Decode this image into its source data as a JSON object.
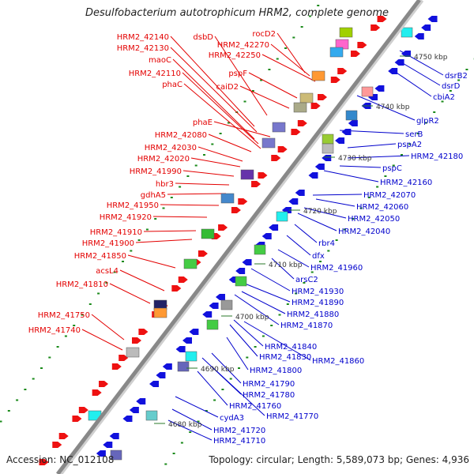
{
  "title": "Desulfobacterium autotrophicum HRM2, complete genome",
  "footer": {
    "accession": "Accession: NC_012108",
    "summary": "Topology: circular; Length: 5,589,073 bp; Genes: 4,936"
  },
  "colors": {
    "forward_label": "#e30000",
    "reverse_label": "#0000cc",
    "backbone": "#888888",
    "tick": "#1a8a1a"
  },
  "scale_ticks": [
    "4680 kbp",
    "4690 kbp",
    "4700 kbp",
    "4710 kbp",
    "4720 kbp",
    "4730 kbp",
    "4740 kbp",
    "4750 kbp"
  ],
  "forward_genes": [
    "HRM2_42140",
    "HRM2_42130",
    "dsbD",
    "rocD2",
    "HRM2_42270",
    "HRM2_42250",
    "maoC",
    "HRM2_42110",
    "pspF",
    "caiD2",
    "phaC",
    "phaE",
    "HRM2_42080",
    "HRM2_42030",
    "HRM2_42020",
    "HRM2_41990",
    "hbr3",
    "gdhA5",
    "HRM2_41950",
    "HRM2_41920",
    "HRM2_41910",
    "HRM2_41900",
    "HRM2_41850",
    "acsL4",
    "HRM2_41810",
    "HRM2_41750",
    "HRM2_41740"
  ],
  "reverse_genes": [
    "dsrB2",
    "dsrD",
    "cbiA2",
    "glpR2",
    "serB",
    "pspA2",
    "HRM2_42180",
    "pspC",
    "HRM2_42160",
    "HRM2_42070",
    "HRM2_42060",
    "HRM2_42050",
    "HRM2_42040",
    "rbr4",
    "dfx",
    "HRM2_41960",
    "arsC2",
    "HRM2_41930",
    "HRM2_41890",
    "HRM2_41880",
    "HRM2_41870",
    "HRM2_41840",
    "HRM2_41830",
    "HRM2_41860",
    "HRM2_41800",
    "HRM2_41790",
    "HRM2_41780",
    "HRM2_41760",
    "HRM2_41770",
    "cydA3",
    "HRM2_41720",
    "HRM2_41710"
  ]
}
